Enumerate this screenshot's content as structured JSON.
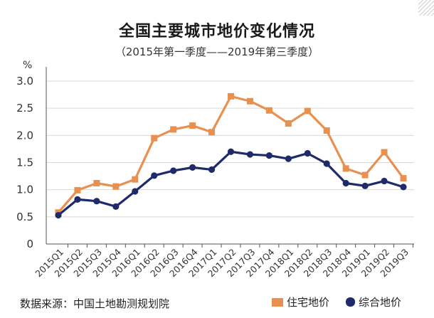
{
  "title": "全国主要城市地价变化情况",
  "subtitle": "（2015年第一季度——2019年第三季度）",
  "unit": "%",
  "source": "数据来源：中国土地勘测规划院",
  "colors": {
    "residential": "#E8904F",
    "composite": "#1F2A6B",
    "grid": "#d9d9d9",
    "axis": "#555555"
  },
  "chart_data": {
    "type": "line",
    "categories": [
      "2015Q1",
      "2015Q2",
      "2015Q3",
      "2015Q4",
      "2016Q1",
      "2016Q2",
      "2016Q3",
      "2016Q4",
      "2017Q1",
      "2017Q2",
      "2017Q3",
      "2017Q4",
      "2018Q1",
      "2018Q2",
      "2018Q3",
      "2018Q4",
      "2019Q1",
      "2019Q2",
      "2019Q3"
    ],
    "ylim": [
      0,
      3.0
    ],
    "yticks": [
      "0",
      "0.5",
      "1.0",
      "1.5",
      "2.0",
      "2.5",
      "3.0"
    ],
    "ytick_values": [
      0,
      0.5,
      1.0,
      1.5,
      2.0,
      2.5,
      3.0
    ],
    "grid": "horizontal",
    "legend_position": "bottom-right",
    "series": [
      {
        "name": "住宅地价",
        "color": "#E8904F",
        "marker": "square",
        "values": [
          0.58,
          0.99,
          1.12,
          1.06,
          1.19,
          1.95,
          2.11,
          2.18,
          2.06,
          2.72,
          2.63,
          2.46,
          2.22,
          2.45,
          2.09,
          1.39,
          1.27,
          1.69,
          1.21
        ]
      },
      {
        "name": "综合地价",
        "color": "#1F2A6B",
        "marker": "circle",
        "values": [
          0.53,
          0.82,
          0.79,
          0.69,
          0.97,
          1.26,
          1.35,
          1.41,
          1.37,
          1.7,
          1.65,
          1.63,
          1.57,
          1.67,
          1.48,
          1.12,
          1.07,
          1.16,
          1.05
        ]
      }
    ]
  }
}
